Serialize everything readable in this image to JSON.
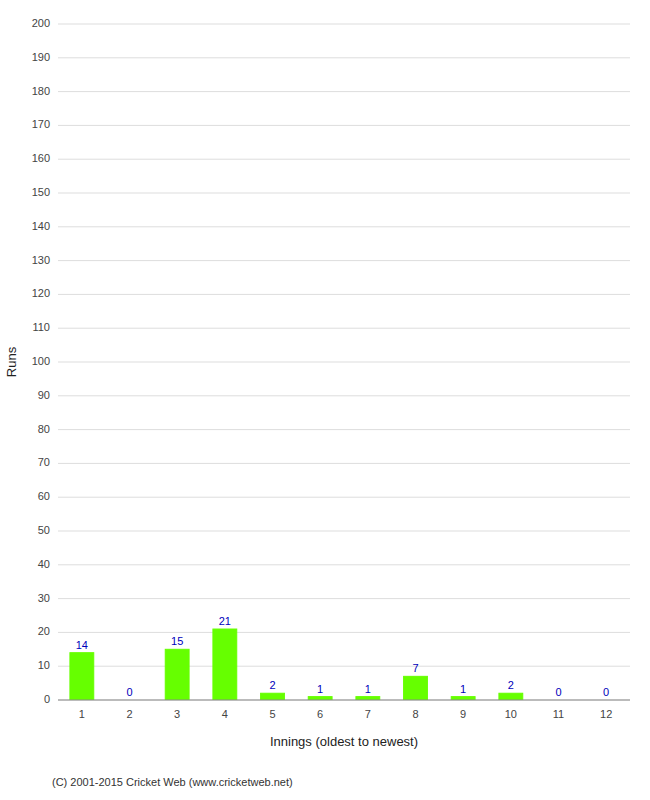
{
  "chart_data": {
    "type": "bar",
    "categories": [
      "1",
      "2",
      "3",
      "4",
      "5",
      "6",
      "7",
      "8",
      "9",
      "10",
      "11",
      "12"
    ],
    "values": [
      14,
      0,
      15,
      21,
      2,
      1,
      1,
      7,
      1,
      2,
      0,
      0
    ],
    "color": "#66ff00",
    "xlabel": "Innings (oldest to newest)",
    "ylabel": "Runs",
    "ylim": [
      0,
      200
    ],
    "yticks": [
      0,
      10,
      20,
      30,
      40,
      50,
      60,
      70,
      80,
      90,
      100,
      110,
      120,
      130,
      140,
      150,
      160,
      170,
      180,
      190,
      200
    ],
    "grid": true,
    "data_labels": true,
    "footer": "(C) 2001-2015 Cricket Web (www.cricketweb.net)"
  }
}
